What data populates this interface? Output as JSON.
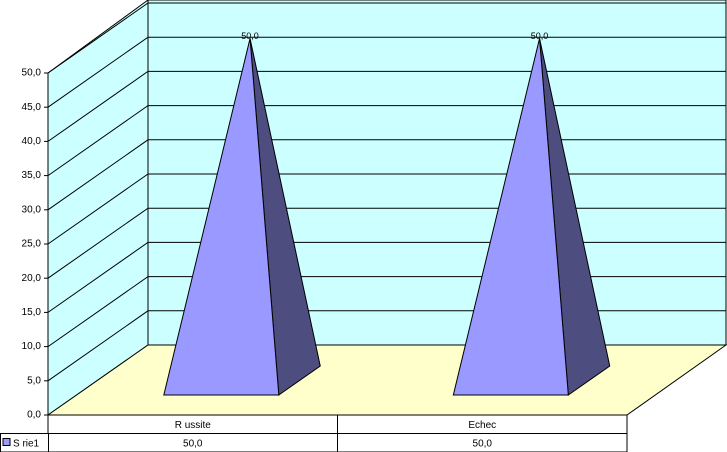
{
  "chart_data": {
    "type": "pyramid",
    "categories": [
      "R ussite",
      "Echec"
    ],
    "series": [
      {
        "name": "S rie1",
        "color": "#9999ff",
        "values": [
          50,
          50
        ],
        "value_labels": [
          "50,0",
          "50,0"
        ]
      }
    ],
    "ylim": [
      0,
      50
    ],
    "yticks": [
      {
        "value": 0,
        "label": "0,0"
      },
      {
        "value": 5,
        "label": "5,0"
      },
      {
        "value": 10,
        "label": "10,0"
      },
      {
        "value": 15,
        "label": "15,0"
      },
      {
        "value": 20,
        "label": "20,0"
      },
      {
        "value": 25,
        "label": "25,0"
      },
      {
        "value": 30,
        "label": "30,0"
      },
      {
        "value": 35,
        "label": "35,0"
      },
      {
        "value": 40,
        "label": "40,0"
      },
      {
        "value": 45,
        "label": "45,0"
      },
      {
        "value": 50,
        "label": "50,0"
      }
    ],
    "grid": true,
    "data_table": true
  }
}
